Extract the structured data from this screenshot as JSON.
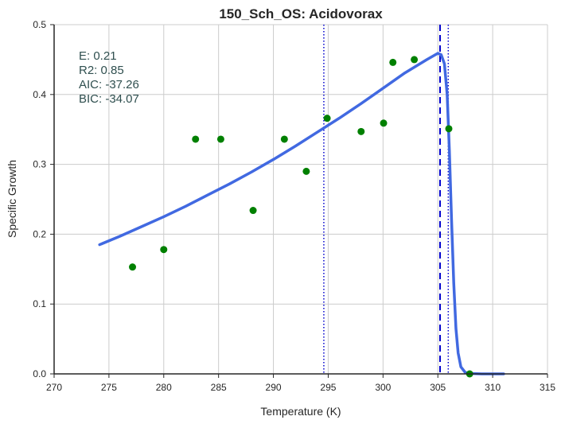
{
  "chart_data": {
    "type": "scatter",
    "title": "150_Sch_OS: Acidovorax",
    "xlabel": "Temperature (K)",
    "ylabel": "Specific Growth",
    "xlim": [
      270,
      315
    ],
    "ylim": [
      0,
      0.5
    ],
    "xticks": [
      "270",
      "275",
      "280",
      "285",
      "290",
      "295",
      "300",
      "305",
      "310",
      "315"
    ],
    "yticks": [
      "0.0",
      "0.1",
      "0.2",
      "0.3",
      "0.4",
      "0.5"
    ],
    "grid": true,
    "colors": {
      "points": "#008000",
      "fit": "#4169E1",
      "vline": "#0000CD",
      "annotation": "#2F4F4F",
      "grid": "#CCCCCC",
      "axes": "#262626"
    },
    "series": [
      {
        "type": "scatter",
        "x": [
          277.15,
          280.0,
          282.9,
          285.2,
          288.15,
          291.0,
          293.0,
          294.9,
          298.0,
          300.05,
          300.9,
          302.85,
          306.0,
          307.9
        ],
        "y": [
          0.153,
          0.178,
          0.336,
          0.336,
          0.234,
          0.336,
          0.29,
          0.366,
          0.347,
          0.359,
          0.446,
          0.45,
          0.351,
          0.0
        ]
      },
      {
        "type": "line",
        "x": [
          274.15,
          276,
          278,
          280,
          282,
          284,
          286,
          288,
          290,
          292,
          294,
          296,
          298,
          300,
          302,
          304,
          305.0,
          305.3,
          305.6,
          305.85,
          306.05,
          306.25,
          306.45,
          306.65,
          306.85,
          307.1,
          307.5,
          308,
          309,
          310,
          311
        ],
        "y": [
          0.185,
          0.197,
          0.211,
          0.225,
          0.24,
          0.256,
          0.272,
          0.289,
          0.307,
          0.326,
          0.346,
          0.366,
          0.387,
          0.409,
          0.431,
          0.45,
          0.459,
          0.457,
          0.444,
          0.4,
          0.32,
          0.22,
          0.13,
          0.065,
          0.03,
          0.01,
          0.002,
          0.0005,
          0.0,
          0.0,
          0.0
        ]
      }
    ],
    "vlines": [
      {
        "x": 294.6,
        "style": "dotted"
      },
      {
        "x": 305.2,
        "style": "dashed"
      },
      {
        "x": 305.95,
        "style": "dotted"
      }
    ],
    "annotations": [
      "E:  0.21",
      "R2:  0.85",
      "AIC: -37.26",
      "BIC: -34.07"
    ]
  }
}
